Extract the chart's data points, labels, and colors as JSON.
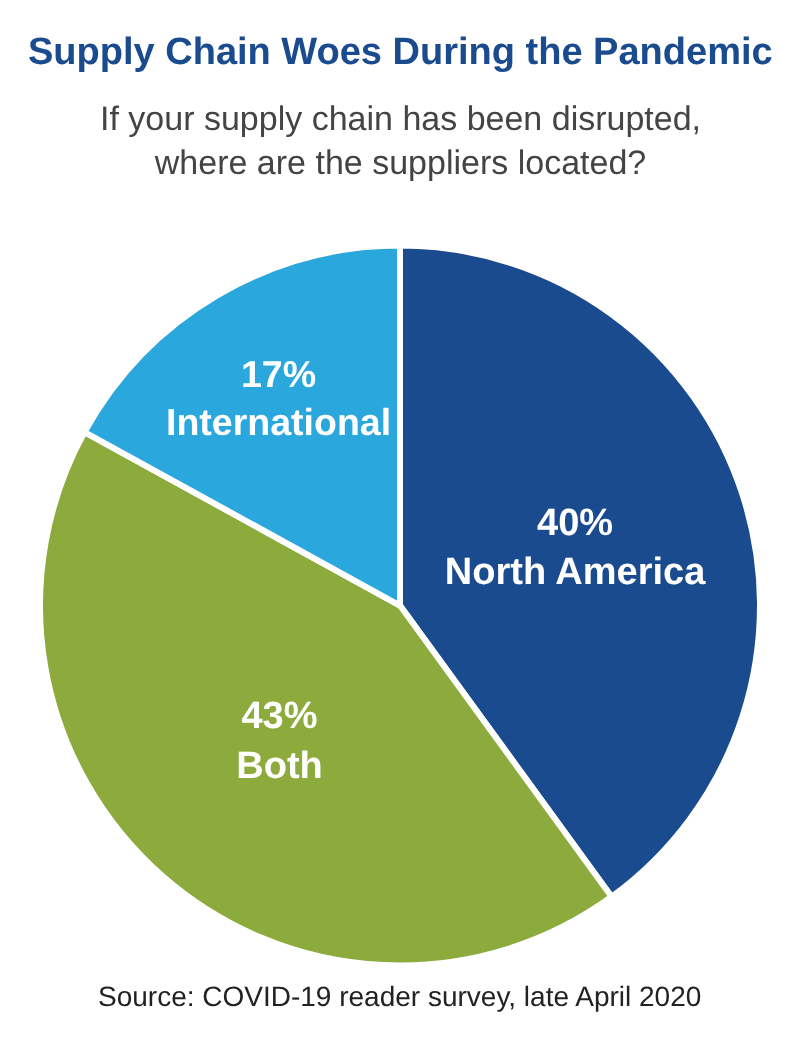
{
  "chart_data": {
    "type": "pie",
    "title": "Supply Chain Woes During the Pandemic",
    "subtitle": "If your supply chain has been disrupted,\nwhere are the suppliers located?",
    "categories": [
      "North America",
      "Both",
      "International"
    ],
    "values": [
      40,
      43,
      17
    ],
    "value_labels": [
      "40%",
      "43%",
      "17%"
    ],
    "colors": [
      "#1b4b8f",
      "#8cab3c",
      "#2aa7dc"
    ],
    "annotations": [
      "Source: COVID-19 reader survey, late April 2020"
    ]
  }
}
